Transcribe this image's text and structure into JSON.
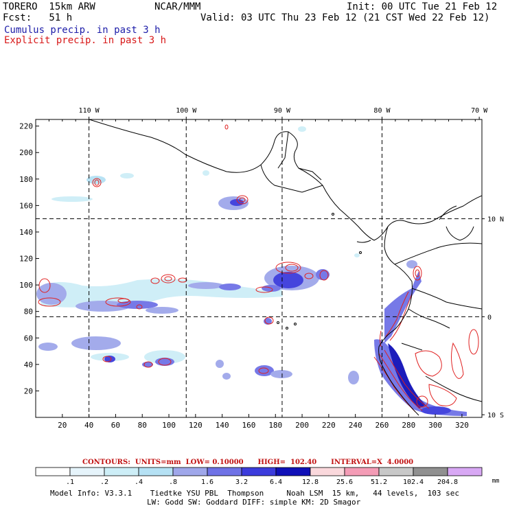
{
  "header": {
    "model": "TORERO  15km ARW",
    "org": "NCAR/MMM",
    "init": "Init: 00 UTC Tue 21 Feb 12",
    "fcst": "Fcst:   51 h",
    "valid": "Valid: 03 UTC Thu 23 Feb 12 (21 CST Wed 22 Feb 12)",
    "line_cumulus": "Cumulus precip. in past 3 h",
    "line_explicit": "Explicit precip. in past 3 h"
  },
  "axes": {
    "top_lon": [
      {
        "label": "110 W",
        "gx": 40
      },
      {
        "label": "100 W",
        "gx": 113
      },
      {
        "label": "90 W",
        "gx": 185
      },
      {
        "label": "80 W",
        "gx": 260
      },
      {
        "label": "70 W",
        "gx": 333
      }
    ],
    "right_lat": [
      {
        "label": "10 N",
        "gy": 150
      },
      {
        "label": "0",
        "gy": 76
      },
      {
        "label": "10 S",
        "gy": 2
      }
    ],
    "bottom_ticks": [
      "20",
      "40",
      "60",
      "80",
      "100",
      "120",
      "140",
      "160",
      "180",
      "200",
      "220",
      "240",
      "260",
      "280",
      "300",
      "320"
    ],
    "left_ticks": [
      "20",
      "40",
      "60",
      "80",
      "100",
      "120",
      "140",
      "160",
      "180",
      "200",
      "220"
    ],
    "grid_x": [
      40,
      113,
      185,
      260
    ],
    "grid_y": [
      76,
      150
    ],
    "xmax": 335,
    "ymax": 225
  },
  "colors": {
    "bins": [
      "#ffffff",
      "#e6f4fb",
      "#cdeef7",
      "#b5e1f4",
      "#9fa7ea",
      "#6f72e6",
      "#3c3cdc",
      "#1010b8",
      "#fad8dc",
      "#f49cb6",
      "#c8c8c8",
      "#909090",
      "#d8a8f4"
    ],
    "explicit_contour": "#e02020",
    "coast": "#000000"
  },
  "contours_note": "CONTOURS:  UNITS=mm  LOW= 0.10000      HIGH=  102.40      INTERVAL=X  4.0000",
  "colorbar": {
    "labels": [
      ".1",
      ".2",
      ".4",
      ".8",
      "1.6",
      "3.2",
      "6.4",
      "12.8",
      "25.6",
      "51.2",
      "102.4",
      "204.8"
    ],
    "units": "mm"
  },
  "footer": {
    "line1": "Model Info: V3.3.1    Tiedtke YSU PBL  Thompson     Noah LSM  15 km,   44 levels,  103 sec",
    "line2": "LW: Godd SW: Goddard DIFF: simple KM: 2D Smagor"
  }
}
